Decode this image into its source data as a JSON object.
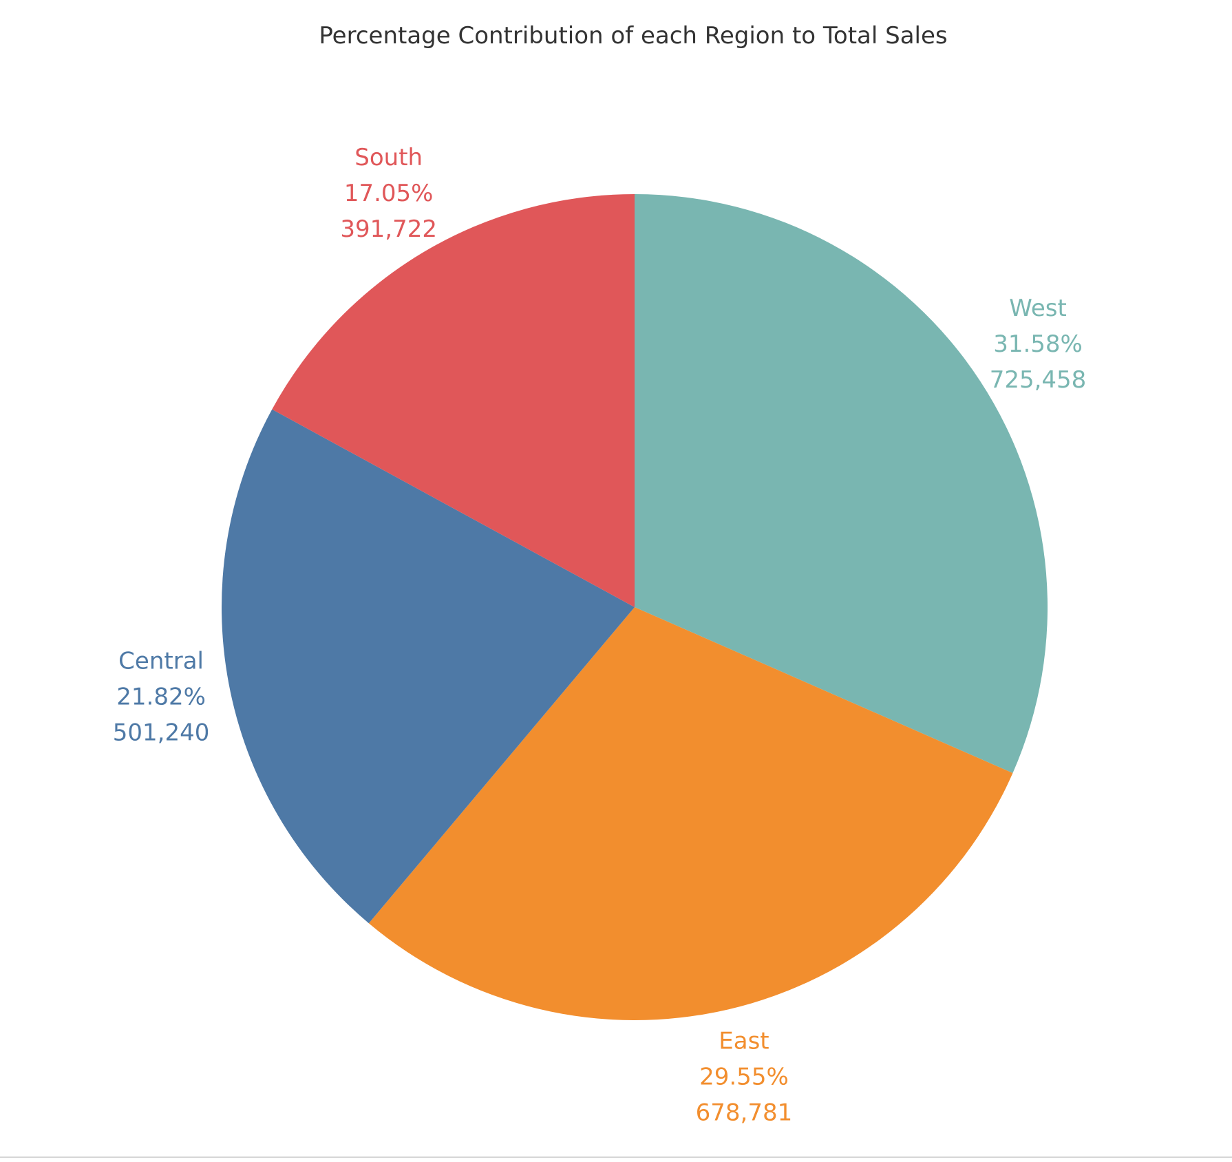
{
  "chart_data": {
    "type": "pie",
    "title": "Percentage Contribution of each Region to Total Sales",
    "start": "12 o'clock",
    "direction": "clockwise",
    "slices": [
      {
        "name": "West",
        "percent_label": "31.58%",
        "value_label": "725,458",
        "value": 725458,
        "color": "#79b6b1"
      },
      {
        "name": "East",
        "percent_label": "29.55%",
        "value_label": "678,781",
        "value": 678781,
        "color": "#f28e2e"
      },
      {
        "name": "Central",
        "percent_label": "21.82%",
        "value_label": "501,240",
        "value": 501240,
        "color": "#4e79a6"
      },
      {
        "name": "South",
        "percent_label": "17.05%",
        "value_label": "391,722",
        "value": 391722,
        "color": "#e05759"
      }
    ]
  }
}
